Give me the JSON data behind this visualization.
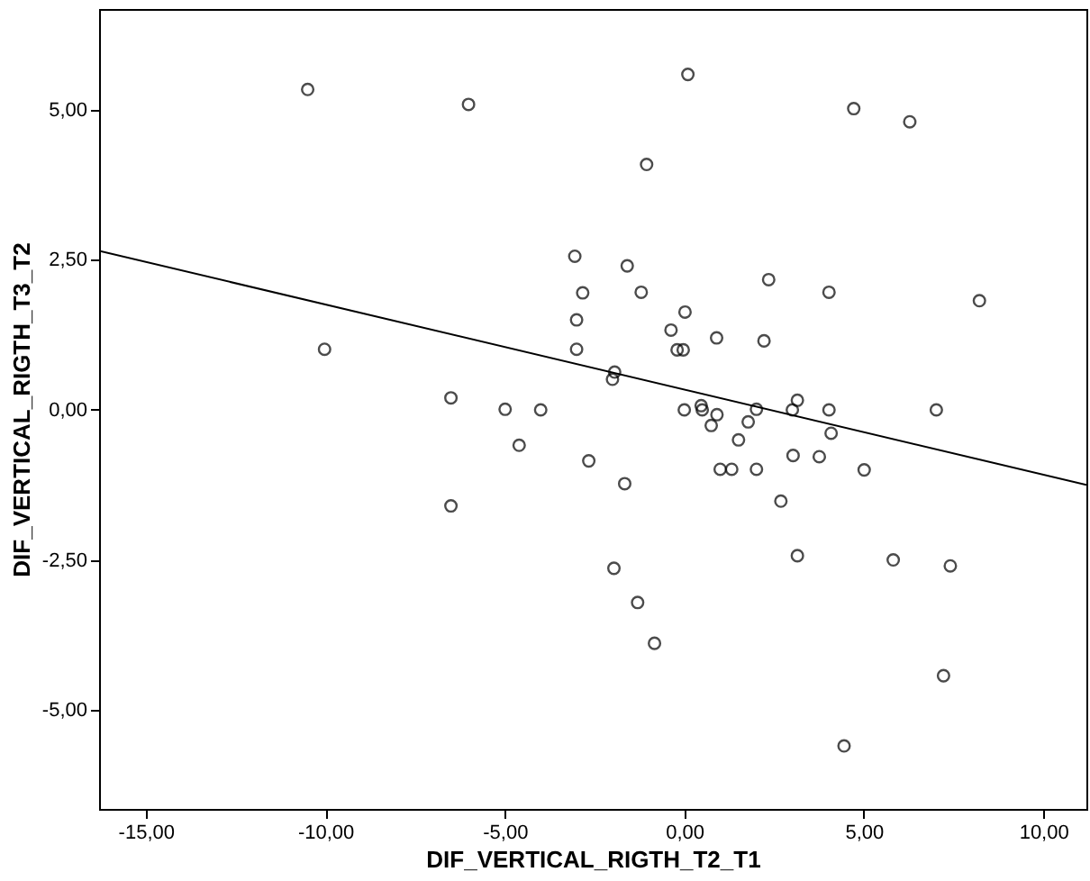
{
  "chart_data": {
    "type": "scatter",
    "xlabel": "DIF_VERTICAL_RIGTH_T2_T1",
    "ylabel": "DIF_VERTICAL_RIGTH_T3_T2",
    "xlim": [
      -16.3,
      11.2
    ],
    "ylim": [
      -6.65,
      6.68
    ],
    "xticks": [
      {
        "value": -15,
        "label": "-15,00"
      },
      {
        "value": -10,
        "label": "-10,00"
      },
      {
        "value": -5,
        "label": "-5,00"
      },
      {
        "value": 0,
        "label": "0,00"
      },
      {
        "value": 5,
        "label": "5,00"
      },
      {
        "value": 10,
        "label": "10,00"
      }
    ],
    "yticks": [
      {
        "value": -5,
        "label": "-5,00"
      },
      {
        "value": -2.5,
        "label": "-2,50"
      },
      {
        "value": 0,
        "label": "0,00"
      },
      {
        "value": 2.5,
        "label": "2,50"
      },
      {
        "value": 5,
        "label": "5,00"
      }
    ],
    "grid": false,
    "series": [
      {
        "color": "#000000",
        "marker": "circle",
        "x": [
          -10.49,
          -6.01,
          -3.05,
          -2.83,
          -3.0,
          -3.0,
          -10.02,
          -6.5,
          -4.99,
          -4.0,
          -4.6,
          -2.66,
          -6.5,
          0.1,
          4.72,
          6.28,
          -1.05,
          -1.59,
          -1.2,
          2.35,
          4.03,
          8.22,
          0.02,
          -0.37,
          0.9,
          2.22,
          -0.2,
          -0.03,
          -1.94,
          -2.0,
          0.0,
          0.47,
          0.5,
          0.91,
          0.75,
          2.01,
          1.78,
          3.15,
          3.01,
          4.03,
          4.09,
          7.02,
          1.51,
          1.0,
          1.32,
          2.01,
          3.03,
          3.76,
          5.01,
          -1.66,
          2.69,
          -1.96,
          3.15,
          5.82,
          7.41,
          -1.3,
          -0.83,
          7.22,
          4.45
        ],
        "values": [
          5.34,
          5.09,
          2.56,
          1.95,
          1.5,
          1.01,
          1.01,
          0.2,
          0.01,
          0.0,
          -0.59,
          -0.85,
          -1.6,
          5.59,
          5.02,
          4.8,
          4.09,
          2.4,
          1.96,
          2.17,
          1.96,
          1.82,
          1.63,
          1.33,
          1.2,
          1.15,
          1.0,
          1.0,
          0.63,
          0.51,
          0.0,
          0.07,
          0.0,
          -0.08,
          -0.26,
          0.01,
          -0.2,
          0.16,
          0.0,
          0.0,
          -0.39,
          0.0,
          -0.5,
          -0.99,
          -0.99,
          -0.99,
          -0.76,
          -0.78,
          -1.0,
          -1.23,
          -1.52,
          -2.64,
          -2.43,
          -2.5,
          -2.6,
          -3.21,
          -3.89,
          -4.43,
          -5.6
        ]
      },
      {
        "type": "line",
        "color": "#000000",
        "line_style": "solid",
        "x": [
          -16.3,
          11.2
        ],
        "values": [
          2.65,
          -1.25
        ]
      }
    ]
  }
}
